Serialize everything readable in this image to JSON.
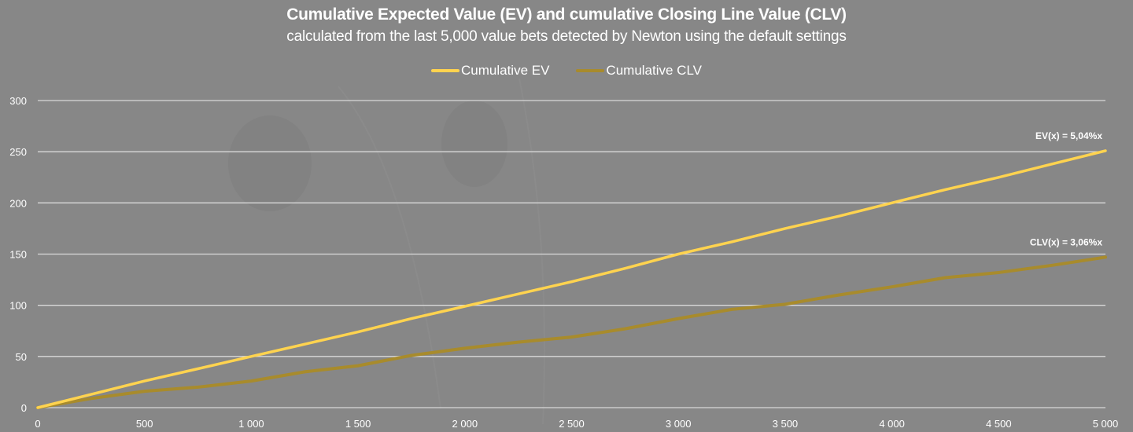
{
  "chart_data": {
    "type": "line",
    "title": "Cumulative Expected Value (EV) and cumulative Closing Line Value (CLV)",
    "subtitle": "calculated from the last 5,000 value bets detected by Newton using the default settings",
    "xlabel": "",
    "ylabel": "",
    "xlim": [
      0,
      5000
    ],
    "ylim": [
      0,
      300
    ],
    "grid": true,
    "legend_position": "top-center",
    "x_ticks": [
      0,
      500,
      1000,
      1500,
      2000,
      2500,
      3000,
      3500,
      4000,
      4500,
      5000
    ],
    "x_tick_labels": [
      "0",
      "500",
      "1 000",
      "1 500",
      "2 000",
      "2 500",
      "3 000",
      "3 500",
      "4 000",
      "4 500",
      "5 000"
    ],
    "y_ticks": [
      0,
      50,
      100,
      150,
      200,
      250,
      300
    ],
    "y_tick_labels": [
      "0",
      "50",
      "100",
      "150",
      "200",
      "250",
      "300"
    ],
    "x": [
      0,
      250,
      500,
      750,
      1000,
      1250,
      1500,
      1750,
      2000,
      2250,
      2500,
      2750,
      3000,
      3250,
      3500,
      3750,
      4000,
      4250,
      4500,
      4750,
      5000
    ],
    "series": [
      {
        "name": "Cumulative EV",
        "color": "#ffd34f",
        "values": [
          0,
          13,
          26,
          38,
          50,
          62,
          74,
          87,
          99,
          111,
          123,
          136,
          150,
          162,
          175,
          187,
          200,
          213,
          225,
          238,
          251
        ]
      },
      {
        "name": "Cumulative CLV",
        "color": "#a88b2c",
        "values": [
          0,
          9,
          16,
          20,
          26,
          35,
          41,
          51,
          58,
          64,
          69,
          77,
          87,
          96,
          101,
          110,
          118,
          127,
          132,
          139,
          147
        ]
      }
    ],
    "annotations": [
      {
        "text": "EV(x) = 5,04%x",
        "series": "Cumulative EV"
      },
      {
        "text": "CLV(x) = 3,06%x",
        "series": "Cumulative CLV"
      }
    ]
  }
}
